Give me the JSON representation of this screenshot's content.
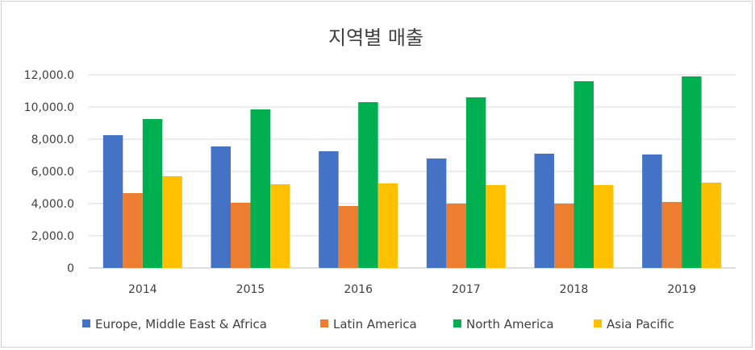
{
  "chart_data": {
    "type": "bar",
    "title": "지역별 매출",
    "categories": [
      "2014",
      "2015",
      "2016",
      "2017",
      "2018",
      "2019"
    ],
    "series": [
      {
        "name": "Europe, Middle East & Africa",
        "color": "#4472C4",
        "values": [
          8250,
          7550,
          7250,
          6800,
          7100,
          7050
        ]
      },
      {
        "name": "Latin America",
        "color": "#ED7D31",
        "values": [
          4650,
          4050,
          3850,
          4000,
          4000,
          4100
        ]
      },
      {
        "name": "North America",
        "color": "#00B050",
        "values": [
          9250,
          9850,
          10300,
          10600,
          11600,
          11900
        ]
      },
      {
        "name": "Asia Pacific",
        "color": "#FFC000",
        "values": [
          5700,
          5200,
          5250,
          5150,
          5150,
          5300
        ]
      }
    ],
    "y_ticks": [
      "0",
      "2,000.0",
      "4,000.0",
      "6,000.0",
      "8,000.0",
      "10,000.0",
      "12,000.0"
    ],
    "ylim": [
      0,
      12000
    ],
    "grid": true,
    "legend_position": "bottom"
  }
}
